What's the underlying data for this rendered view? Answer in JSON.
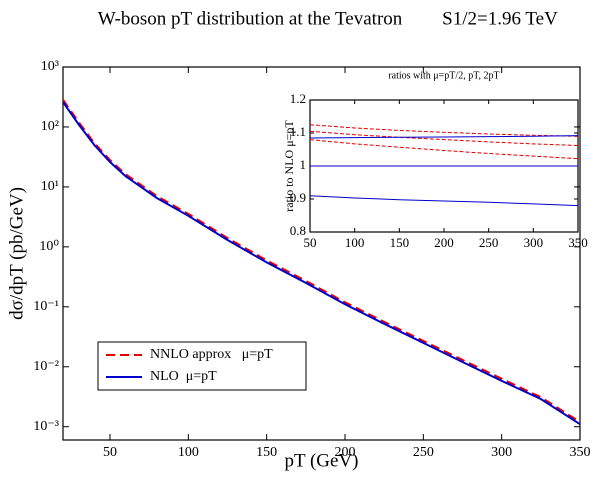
{
  "chart_data": [
    {
      "type": "line",
      "title": "W-boson pT distribution at the Tevatron",
      "subtitle": "S1/2=1.96 TeV",
      "x_label": "pT (GeV)",
      "y_label": "dσ/dpT (pb/GeV)",
      "xlim": [
        20,
        350
      ],
      "xticks": [
        50,
        100,
        150,
        200,
        250,
        300,
        350
      ],
      "ylim": [
        0.0006,
        1000
      ],
      "yscale": "log",
      "yticks": [
        {
          "value": 0.001,
          "label": "10⁻³"
        },
        {
          "value": 0.01,
          "label": "10⁻²"
        },
        {
          "value": 0.1,
          "label": "10⁻¹"
        },
        {
          "value": 1,
          "label": "10⁰"
        },
        {
          "value": 10,
          "label": "10¹"
        },
        {
          "value": 100,
          "label": "10²"
        },
        {
          "value": 1000,
          "label": "10³"
        }
      ],
      "legend": "lower-left",
      "x": [
        20,
        30,
        40,
        50,
        60,
        80,
        100,
        125,
        150,
        175,
        200,
        225,
        250,
        275,
        300,
        325,
        350
      ],
      "series": [
        {
          "name": "NNLO approx   μ=pT",
          "color": "#e00000",
          "dashed": true,
          "values": [
            285,
            120,
            54,
            28,
            16.2,
            7.0,
            3.55,
            1.4,
            0.595,
            0.27,
            0.119,
            0.056,
            0.027,
            0.013,
            0.0063,
            0.0031,
            0.0012
          ]
        },
        {
          "name": "NLO  μ=pT",
          "color": "#0000cc",
          "dashed": false,
          "values": [
            260,
            110,
            50,
            26,
            15,
            6.5,
            3.3,
            1.3,
            0.55,
            0.25,
            0.11,
            0.052,
            0.025,
            0.012,
            0.0058,
            0.0029,
            0.0011
          ]
        }
      ]
    },
    {
      "type": "line",
      "title": "ratios with μ=pT/2, pT, 2pT",
      "y_label": "ratio to NLO μ=pT",
      "xlim": [
        50,
        350
      ],
      "xticks": [
        50,
        100,
        150,
        200,
        250,
        300,
        350
      ],
      "ylim": [
        0.8,
        1.2
      ],
      "yticks": [
        0.8,
        0.9,
        1,
        1.1,
        1.2
      ],
      "x": [
        50,
        100,
        150,
        200,
        250,
        300,
        350
      ],
      "series": [
        {
          "color": "#e00000",
          "dashed": true,
          "values": [
            1.125,
            1.115,
            1.108,
            1.102,
            1.097,
            1.093,
            1.09
          ]
        },
        {
          "color": "#e00000",
          "dashed": true,
          "values": [
            1.105,
            1.095,
            1.087,
            1.08,
            1.073,
            1.067,
            1.062
          ]
        },
        {
          "color": "#e00000",
          "dashed": true,
          "values": [
            1.08,
            1.067,
            1.057,
            1.047,
            1.038,
            1.03,
            1.022
          ]
        },
        {
          "color": "#0000cc",
          "dashed": false,
          "values": [
            1.085,
            1.086,
            1.087,
            1.088,
            1.089,
            1.09,
            1.092
          ]
        },
        {
          "color": "#0000cc",
          "dashed": false,
          "values": [
            1,
            1,
            1,
            1,
            1,
            1,
            1
          ]
        },
        {
          "color": "#0000cc",
          "dashed": false,
          "values": [
            0.91,
            0.903,
            0.898,
            0.894,
            0.89,
            0.885,
            0.88
          ]
        }
      ]
    }
  ]
}
